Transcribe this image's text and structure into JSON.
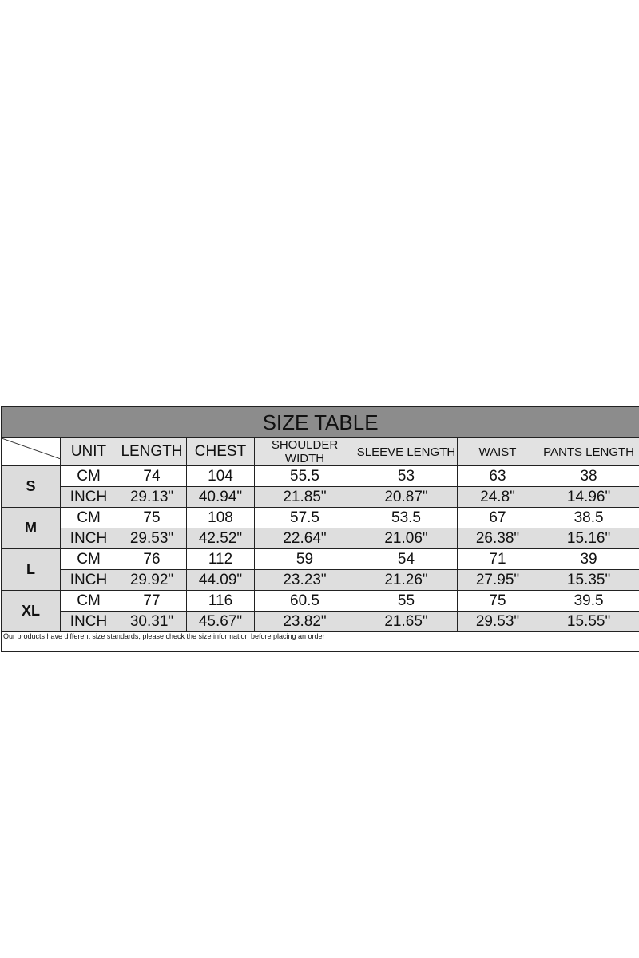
{
  "title": "SIZE TABLE",
  "headers": [
    "UNIT",
    "LENGTH",
    "CHEST",
    "SHOULDER WIDTH",
    "SLEEVE LENGTH",
    "WAIST",
    "PANTS LENGTH"
  ],
  "rows": [
    {
      "size": "S",
      "cm": [
        "CM",
        "74",
        "104",
        "55.5",
        "53",
        "63",
        "38"
      ],
      "inch": [
        "INCH",
        "29.13\"",
        "40.94\"",
        "21.85\"",
        "20.87\"",
        "24.8\"",
        "14.96\""
      ]
    },
    {
      "size": "M",
      "cm": [
        "CM",
        "75",
        "108",
        "57.5",
        "53.5",
        "67",
        "38.5"
      ],
      "inch": [
        "INCH",
        "29.53\"",
        "42.52\"",
        "22.64\"",
        "21.06\"",
        "26.38\"",
        "15.16\""
      ]
    },
    {
      "size": "L",
      "cm": [
        "CM",
        "76",
        "112",
        "59",
        "54",
        "71",
        "39"
      ],
      "inch": [
        "INCH",
        "29.92\"",
        "44.09\"",
        "23.23\"",
        "21.26\"",
        "27.95\"",
        "15.35\""
      ]
    },
    {
      "size": "XL",
      "cm": [
        "CM",
        "77",
        "116",
        "60.5",
        "55",
        "75",
        "39.5"
      ],
      "inch": [
        "INCH",
        "30.31\"",
        "45.67\"",
        "23.82\"",
        "21.65\"",
        "29.53\"",
        "15.55\""
      ]
    }
  ],
  "footnote": "Our products have different size standards, please check the size information before placing an order"
}
